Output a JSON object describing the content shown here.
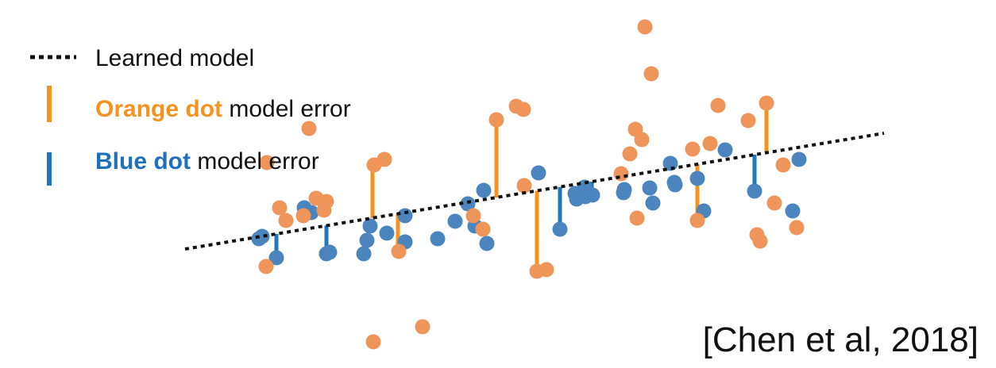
{
  "legend": {
    "items": [
      {
        "label": "Learned model"
      },
      {
        "label_bold": "Orange dot",
        "label_rest": " model error"
      },
      {
        "label_bold": "Blue dot",
        "label_rest": " model error"
      }
    ]
  },
  "citation": "[Chen et al, 2018]",
  "colors": {
    "orange_dot": "#F0955A",
    "orange_error": "#F7921E",
    "orange_text": "#F7921E",
    "blue_dot": "#4A85BF",
    "blue_error": "#1F77C0",
    "blue_text": "#1F6FBF",
    "model_line": "#111111"
  },
  "chart_data": {
    "type": "scatter",
    "series": [
      {
        "name": "Orange dot",
        "points": [
          [
            812,
            34
          ],
          [
            820,
            93
          ],
          [
            389,
            162
          ],
          [
            650,
            134
          ],
          [
            659,
            138
          ],
          [
            625,
            151
          ],
          [
            904,
            133
          ],
          [
            965,
            130
          ],
          [
            942,
            152
          ],
          [
            800,
            163
          ],
          [
            808,
            176
          ],
          [
            793,
            194
          ],
          [
            872,
            188
          ],
          [
            894,
            181
          ],
          [
            484,
            201
          ],
          [
            471,
            208
          ],
          [
            336,
            205
          ],
          [
            986,
            208
          ],
          [
            782,
            219
          ],
          [
            660,
            234
          ],
          [
            398,
            250
          ],
          [
            411,
            254
          ],
          [
            352,
            262
          ],
          [
            408,
            265
          ],
          [
            382,
            272
          ],
          [
            360,
            278
          ],
          [
            596,
            272
          ],
          [
            802,
            275
          ],
          [
            975,
            256
          ],
          [
            878,
            278
          ],
          [
            608,
            289
          ],
          [
            953,
            296
          ],
          [
            1003,
            287
          ],
          [
            957,
            304
          ],
          [
            502,
            317
          ],
          [
            335,
            336
          ],
          [
            676,
            342
          ],
          [
            688,
            340
          ],
          [
            532,
            412
          ],
          [
            470,
            431
          ]
        ]
      },
      {
        "name": "Blue dot",
        "points": [
          [
            913,
            189
          ],
          [
            1006,
            201
          ],
          [
            844,
            206
          ],
          [
            678,
            218
          ],
          [
            849,
            230
          ],
          [
            878,
            225
          ],
          [
            850,
            233
          ],
          [
            609,
            240
          ],
          [
            736,
            236
          ],
          [
            724,
            244
          ],
          [
            746,
            246
          ],
          [
            726,
            251
          ],
          [
            737,
            248
          ],
          [
            786,
            239
          ],
          [
            818,
            237
          ],
          [
            785,
            243
          ],
          [
            950,
            241
          ],
          [
            589,
            257
          ],
          [
            822,
            256
          ],
          [
            383,
            262
          ],
          [
            392,
            268
          ],
          [
            886,
            266
          ],
          [
            998,
            266
          ],
          [
            510,
            272
          ],
          [
            573,
            279
          ],
          [
            466,
            285
          ],
          [
            598,
            285
          ],
          [
            487,
            294
          ],
          [
            705,
            289
          ],
          [
            330,
            298
          ],
          [
            551,
            301
          ],
          [
            326,
            301
          ],
          [
            462,
            303
          ],
          [
            510,
            305
          ],
          [
            613,
            307
          ],
          [
            415,
            318
          ],
          [
            411,
            320
          ],
          [
            458,
            320
          ],
          [
            348,
            325
          ]
        ]
      }
    ],
    "model_line": [
      [
        233,
        314
      ],
      [
        1113,
        168
      ]
    ],
    "error_lines": {
      "orange": [
        [
          965,
          130
        ],
        [
          625,
          151
        ],
        [
          469,
          208
        ],
        [
          878,
          278
        ],
        [
          676,
          342
        ],
        [
          501,
          317
        ]
      ],
      "blue": [
        [
          348,
          325
        ],
        [
          411,
          320
        ],
        [
          705,
          289
        ],
        [
          950,
          241
        ],
        [
          745,
          246
        ]
      ]
    }
  }
}
